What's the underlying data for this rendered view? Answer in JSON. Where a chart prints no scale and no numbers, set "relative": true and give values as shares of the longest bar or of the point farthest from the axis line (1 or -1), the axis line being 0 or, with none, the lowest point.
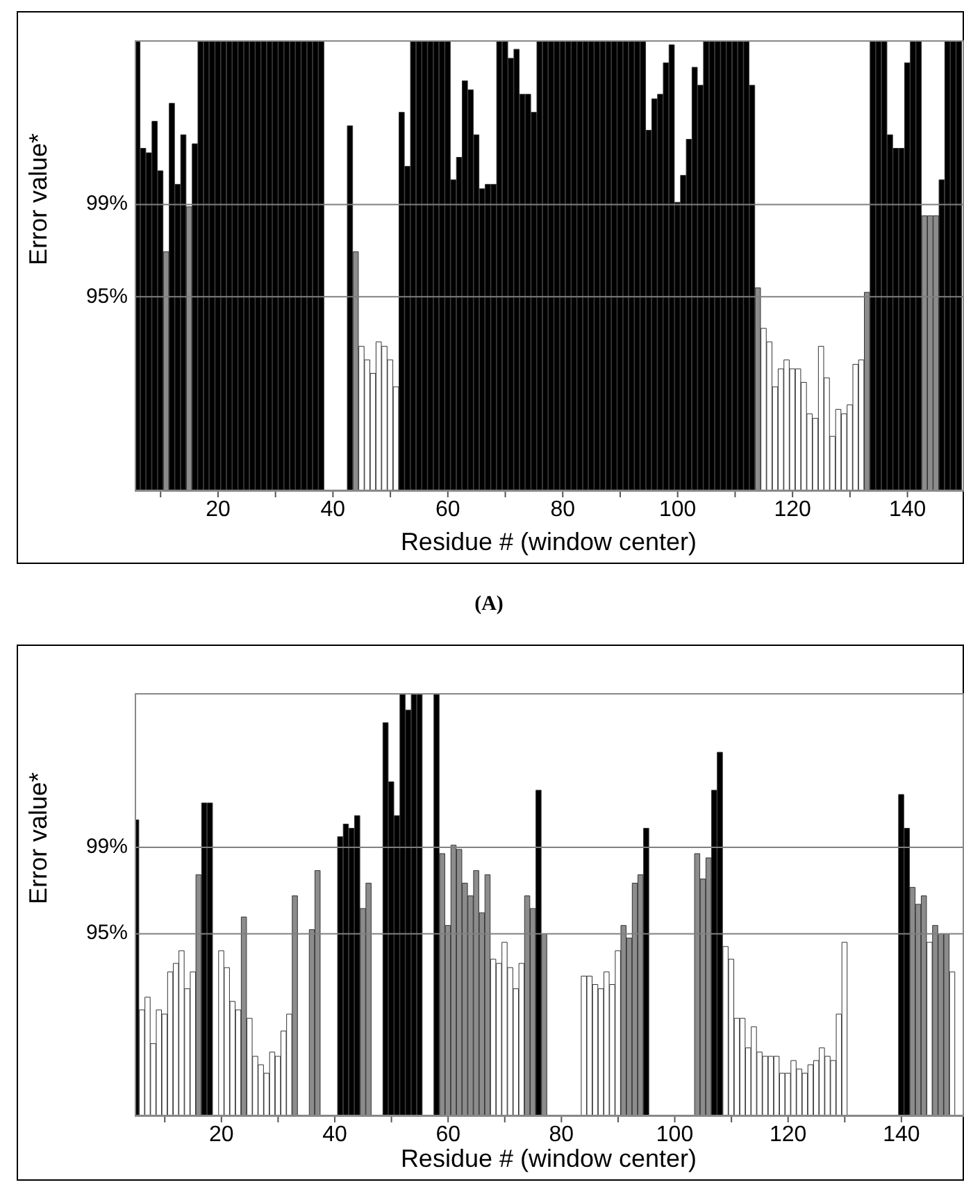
{
  "chart_data": [
    {
      "type": "bar",
      "relative": true,
      "xlabel": "Residue # (window center)",
      "ylabel": "Error value*",
      "annotations": [
        "99%",
        "95%",
        "(A)"
      ],
      "xlim": [
        5.5,
        149.6
      ],
      "xticks": [
        {
          "value": 10,
          "label": null
        },
        20,
        {
          "value": 30,
          "label": null
        },
        40,
        {
          "value": 50,
          "label": null
        },
        60,
        {
          "value": 70,
          "label": null
        },
        80,
        {
          "value": 90,
          "label": null
        },
        100,
        {
          "value": 110,
          "label": null
        },
        120,
        {
          "value": 130,
          "label": null
        },
        140
      ],
      "ref_lines": [
        {
          "axis": "y",
          "value": 0.635,
          "color": "#808080"
        },
        {
          "axis": "y",
          "value": 0.43,
          "color": "#808080"
        }
      ],
      "x": [
        6,
        7,
        8,
        9,
        10,
        11,
        12,
        13,
        14,
        15,
        16,
        17,
        18,
        19,
        20,
        21,
        22,
        23,
        24,
        25,
        26,
        27,
        28,
        29,
        30,
        31,
        32,
        33,
        34,
        35,
        36,
        37,
        38,
        39,
        40,
        41,
        42,
        43,
        44,
        45,
        46,
        47,
        48,
        49,
        50,
        51,
        52,
        53,
        54,
        55,
        56,
        57,
        58,
        59,
        60,
        61,
        62,
        63,
        64,
        65,
        66,
        67,
        68,
        69,
        70,
        71,
        72,
        73,
        74,
        75,
        76,
        77,
        78,
        79,
        80,
        81,
        82,
        83,
        84,
        85,
        86,
        87,
        88,
        89,
        90,
        91,
        92,
        93,
        94,
        95,
        96,
        97,
        98,
        99,
        100,
        101,
        102,
        103,
        104,
        105,
        106,
        107,
        108,
        109,
        110,
        111,
        112,
        113,
        114,
        115,
        116,
        117,
        118,
        119,
        120,
        121,
        122,
        123,
        124,
        125,
        126,
        127,
        128,
        129,
        130,
        131,
        132,
        133,
        134,
        135,
        136,
        137,
        138,
        139,
        140,
        141,
        142,
        143,
        144,
        145,
        146,
        147,
        148,
        149
      ],
      "values": [
        1,
        0.76,
        0.75,
        0.82,
        0.71,
        0.53,
        0.86,
        0.68,
        0.79,
        0.63,
        0.77,
        1,
        1,
        1,
        1,
        1,
        1,
        1,
        1,
        1,
        1,
        1,
        1,
        1,
        1,
        1,
        1,
        1,
        1,
        1,
        1,
        1,
        1,
        null,
        null,
        null,
        null,
        0.81,
        0.53,
        0.32,
        0.29,
        0.26,
        0.33,
        0.32,
        0.29,
        0.23,
        0.84,
        0.72,
        1,
        1,
        1,
        1,
        1,
        1,
        1,
        0.69,
        0.74,
        0.91,
        0.89,
        0.79,
        0.67,
        0.68,
        0.68,
        1,
        1,
        0.96,
        0.98,
        0.88,
        0.88,
        0.84,
        1,
        1,
        1,
        1,
        1,
        1,
        1,
        1,
        1,
        1,
        1,
        1,
        1,
        1,
        1,
        1,
        1,
        1,
        1,
        0.8,
        0.87,
        0.88,
        0.95,
        0.99,
        0.64,
        0.7,
        0.78,
        0.94,
        0.9,
        1,
        1,
        1,
        1,
        1,
        1,
        1,
        1,
        0.9,
        0.45,
        0.36,
        0.33,
        0.23,
        0.27,
        0.29,
        0.27,
        0.27,
        0.24,
        0.17,
        0.16,
        0.32,
        0.25,
        0.12,
        0.18,
        0.17,
        0.19,
        0.28,
        0.29,
        0.44,
        1,
        1,
        1,
        0.79,
        0.76,
        0.76,
        0.95,
        1,
        1,
        0.61,
        0.61,
        0.61,
        0.69,
        1,
        1,
        1
      ],
      "colors": [
        "#000000",
        "#000000",
        "#000000",
        "#000000",
        "#000000",
        "#8c8c8c",
        "#000000",
        "#000000",
        "#000000",
        "#8c8c8c",
        "#000000",
        "#000000",
        "#000000",
        "#000000",
        "#000000",
        "#000000",
        "#000000",
        "#000000",
        "#000000",
        "#000000",
        "#000000",
        "#000000",
        "#000000",
        "#000000",
        "#000000",
        "#000000",
        "#000000",
        "#000000",
        "#000000",
        "#000000",
        "#000000",
        "#000000",
        "#000000",
        null,
        null,
        null,
        null,
        "#000000",
        "#8c8c8c",
        "#ffffff",
        "#ffffff",
        "#ffffff",
        "#ffffff",
        "#ffffff",
        "#ffffff",
        "#ffffff",
        "#000000",
        "#000000",
        "#000000",
        "#000000",
        "#000000",
        "#000000",
        "#000000",
        "#000000",
        "#000000",
        "#000000",
        "#000000",
        "#000000",
        "#000000",
        "#000000",
        "#000000",
        "#000000",
        "#000000",
        "#000000",
        "#000000",
        "#000000",
        "#000000",
        "#000000",
        "#000000",
        "#000000",
        "#000000",
        "#000000",
        "#000000",
        "#000000",
        "#000000",
        "#000000",
        "#000000",
        "#000000",
        "#000000",
        "#000000",
        "#000000",
        "#000000",
        "#000000",
        "#000000",
        "#000000",
        "#000000",
        "#000000",
        "#000000",
        "#000000",
        "#000000",
        "#000000",
        "#000000",
        "#000000",
        "#000000",
        "#000000",
        "#000000",
        "#000000",
        "#000000",
        "#000000",
        "#000000",
        "#000000",
        "#000000",
        "#000000",
        "#000000",
        "#000000",
        "#000000",
        "#000000",
        "#000000",
        "#8c8c8c",
        "#ffffff",
        "#ffffff",
        "#ffffff",
        "#ffffff",
        "#ffffff",
        "#ffffff",
        "#ffffff",
        "#ffffff",
        "#ffffff",
        "#ffffff",
        "#ffffff",
        "#ffffff",
        "#ffffff",
        "#ffffff",
        "#ffffff",
        "#ffffff",
        "#ffffff",
        "#ffffff",
        "#8c8c8c",
        "#000000",
        "#000000",
        "#000000",
        "#000000",
        "#000000",
        "#000000",
        "#000000",
        "#000000",
        "#000000",
        "#8c8c8c",
        "#8c8c8c",
        "#8c8c8c",
        "#000000",
        "#000000",
        "#000000",
        "#000000"
      ]
    },
    {
      "type": "bar",
      "relative": true,
      "xlabel": "Residue # (window center)",
      "ylabel": "Error value*",
      "annotations": [
        "99%",
        "95%"
      ],
      "xlim": [
        4.7,
        150.8
      ],
      "xticks": [
        {
          "value": 10,
          "label": null
        },
        20,
        {
          "value": 30,
          "label": null
        },
        40,
        {
          "value": 50,
          "label": null
        },
        60,
        {
          "value": 70,
          "label": null
        },
        80,
        {
          "value": 90,
          "label": null
        },
        100,
        {
          "value": 110,
          "label": null
        },
        120,
        {
          "value": 130,
          "label": null
        },
        140
      ],
      "ref_lines": [
        {
          "axis": "y",
          "value": 0.635,
          "color": "#808080"
        },
        {
          "axis": "y",
          "value": 0.43,
          "color": "#808080"
        }
      ],
      "x": [
        5,
        6,
        7,
        8,
        9,
        10,
        11,
        12,
        13,
        14,
        15,
        16,
        17,
        18,
        19,
        20,
        21,
        22,
        23,
        24,
        25,
        26,
        27,
        28,
        29,
        30,
        31,
        32,
        33,
        34,
        35,
        36,
        37,
        38,
        39,
        40,
        41,
        42,
        43,
        44,
        45,
        46,
        47,
        48,
        49,
        50,
        51,
        52,
        53,
        54,
        55,
        56,
        57,
        58,
        59,
        60,
        61,
        62,
        63,
        64,
        65,
        66,
        67,
        68,
        69,
        70,
        71,
        72,
        73,
        74,
        75,
        76,
        77,
        78,
        79,
        80,
        81,
        82,
        83,
        84,
        85,
        86,
        87,
        88,
        89,
        90,
        91,
        92,
        93,
        94,
        95,
        96,
        97,
        98,
        99,
        100,
        101,
        102,
        103,
        104,
        105,
        106,
        107,
        108,
        109,
        110,
        111,
        112,
        113,
        114,
        115,
        116,
        117,
        118,
        119,
        120,
        121,
        122,
        123,
        124,
        125,
        126,
        127,
        128,
        129,
        130,
        131,
        132,
        133,
        134,
        135,
        136,
        137,
        138,
        139,
        140,
        141,
        142,
        143,
        144,
        145,
        146,
        147,
        148,
        149
      ],
      "values": [
        0.7,
        0.25,
        0.28,
        0.17,
        0.25,
        0.24,
        0.34,
        0.36,
        0.39,
        0.3,
        0.34,
        0.57,
        0.74,
        0.74,
        null,
        0.39,
        0.35,
        0.27,
        0.25,
        0.47,
        0.23,
        0.14,
        0.12,
        0.1,
        0.15,
        0.14,
        0.2,
        0.24,
        0.52,
        null,
        null,
        0.44,
        0.58,
        null,
        null,
        null,
        0.66,
        0.69,
        0.68,
        0.71,
        0.49,
        0.55,
        null,
        null,
        0.93,
        0.79,
        0.71,
        1,
        0.96,
        1,
        1,
        null,
        null,
        1,
        0.62,
        0.45,
        0.64,
        0.63,
        0.55,
        0.52,
        0.58,
        0.48,
        0.57,
        0.37,
        0.36,
        0.41,
        0.35,
        0.3,
        0.36,
        0.52,
        0.49,
        0.77,
        0.43,
        null,
        null,
        null,
        null,
        null,
        null,
        0.33,
        0.33,
        0.31,
        0.3,
        0.34,
        0.31,
        0.39,
        0.45,
        0.42,
        0.55,
        0.57,
        0.68,
        null,
        null,
        null,
        null,
        null,
        null,
        null,
        null,
        0.62,
        0.56,
        0.61,
        0.77,
        0.86,
        0.4,
        0.37,
        0.23,
        0.23,
        0.16,
        0.21,
        0.15,
        0.14,
        0.14,
        0.14,
        0.1,
        0.1,
        0.13,
        0.11,
        0.1,
        0.12,
        0.13,
        0.16,
        0.14,
        0.13,
        0.24,
        0.41,
        null,
        null,
        null,
        null,
        null,
        null,
        null,
        null,
        null,
        0.76,
        0.68,
        0.54,
        0.5,
        0.52,
        0.41,
        0.45,
        0.43,
        0.43,
        0.34
      ],
      "colors": [
        "#000000",
        "#ffffff",
        "#ffffff",
        "#ffffff",
        "#ffffff",
        "#ffffff",
        "#ffffff",
        "#ffffff",
        "#ffffff",
        "#ffffff",
        "#ffffff",
        "#8c8c8c",
        "#000000",
        "#000000",
        null,
        "#ffffff",
        "#ffffff",
        "#ffffff",
        "#ffffff",
        "#8c8c8c",
        "#ffffff",
        "#ffffff",
        "#ffffff",
        "#ffffff",
        "#ffffff",
        "#ffffff",
        "#ffffff",
        "#ffffff",
        "#8c8c8c",
        null,
        null,
        "#8c8c8c",
        "#8c8c8c",
        null,
        null,
        null,
        "#000000",
        "#000000",
        "#000000",
        "#000000",
        "#8c8c8c",
        "#8c8c8c",
        null,
        null,
        "#000000",
        "#000000",
        "#000000",
        "#000000",
        "#000000",
        "#000000",
        "#000000",
        null,
        null,
        "#000000",
        "#8c8c8c",
        "#8c8c8c",
        "#8c8c8c",
        "#8c8c8c",
        "#8c8c8c",
        "#8c8c8c",
        "#8c8c8c",
        "#8c8c8c",
        "#8c8c8c",
        "#ffffff",
        "#ffffff",
        "#ffffff",
        "#ffffff",
        "#ffffff",
        "#ffffff",
        "#8c8c8c",
        "#8c8c8c",
        "#000000",
        "#8c8c8c",
        null,
        null,
        null,
        null,
        null,
        null,
        "#ffffff",
        "#ffffff",
        "#ffffff",
        "#ffffff",
        "#ffffff",
        "#ffffff",
        "#ffffff",
        "#8c8c8c",
        "#8c8c8c",
        "#8c8c8c",
        "#8c8c8c",
        "#000000",
        null,
        null,
        null,
        null,
        null,
        null,
        null,
        null,
        "#8c8c8c",
        "#8c8c8c",
        "#8c8c8c",
        "#000000",
        "#000000",
        "#ffffff",
        "#ffffff",
        "#ffffff",
        "#ffffff",
        "#ffffff",
        "#ffffff",
        "#ffffff",
        "#ffffff",
        "#ffffff",
        "#ffffff",
        "#ffffff",
        "#ffffff",
        "#ffffff",
        "#ffffff",
        "#ffffff",
        "#ffffff",
        "#ffffff",
        "#ffffff",
        "#ffffff",
        "#ffffff",
        "#ffffff",
        "#ffffff",
        null,
        null,
        null,
        null,
        null,
        null,
        null,
        null,
        null,
        "#000000",
        "#000000",
        "#8c8c8c",
        "#8c8c8c",
        "#8c8c8c",
        "#ffffff",
        "#8c8c8c",
        "#8c8c8c",
        "#8c8c8c",
        "#ffffff"
      ]
    }
  ]
}
